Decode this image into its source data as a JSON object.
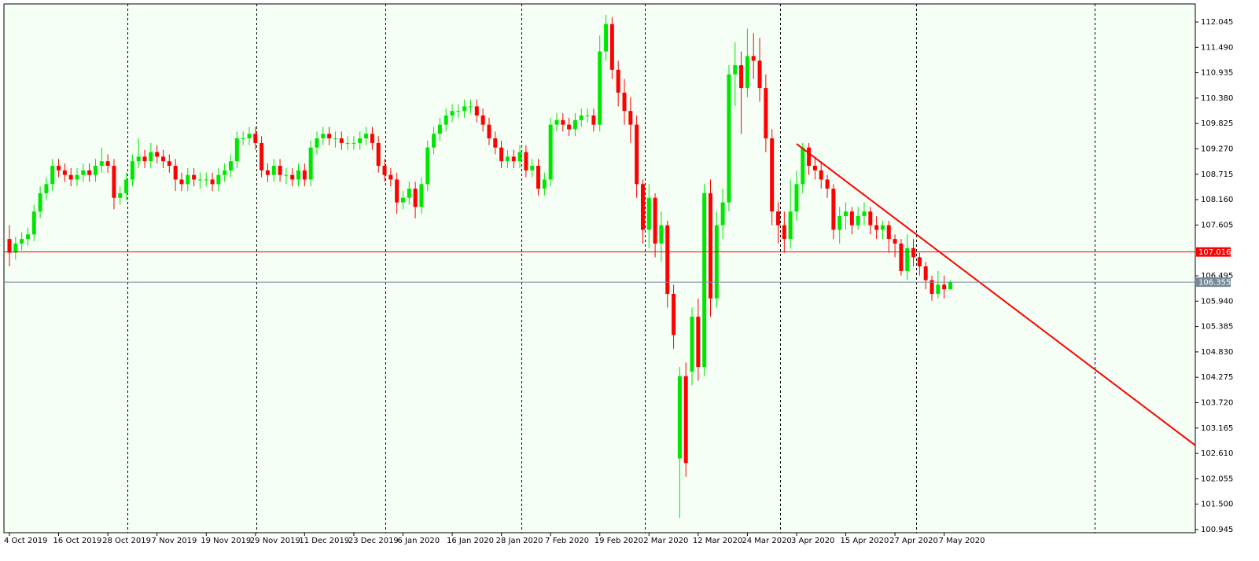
{
  "chart_data": {
    "type": "candlestick",
    "categories": [
      "4 Oct 2019",
      null,
      null,
      null,
      null,
      null,
      null,
      null,
      "16 Oct 2019",
      null,
      null,
      null,
      null,
      null,
      null,
      null,
      "28 Oct 2019",
      null,
      null,
      null,
      null,
      null,
      null,
      null,
      "7 Nov 2019",
      null,
      null,
      null,
      null,
      null,
      null,
      null,
      "19 Nov 2019",
      null,
      null,
      null,
      null,
      null,
      null,
      null,
      "29 Nov 2019",
      null,
      null,
      null,
      null,
      null,
      null,
      null,
      "11 Dec 2019",
      null,
      null,
      null,
      null,
      null,
      null,
      null,
      "23 Dec 2019",
      null,
      null,
      null,
      null,
      null,
      null,
      null,
      "6 Jan 2020",
      null,
      null,
      null,
      null,
      null,
      null,
      null,
      "16 Jan 2020",
      null,
      null,
      null,
      null,
      null,
      null,
      null,
      "28 Jan 2020",
      null,
      null,
      null,
      null,
      null,
      null,
      null,
      "7 Feb 2020",
      null,
      null,
      null,
      null,
      null,
      null,
      null,
      "19 Feb 2020",
      null,
      null,
      null,
      null,
      null,
      null,
      null,
      "2 Mar 2020",
      null,
      null,
      null,
      null,
      null,
      null,
      null,
      "12 Mar 2020",
      null,
      null,
      null,
      null,
      null,
      null,
      null,
      "24 Mar 2020",
      null,
      null,
      null,
      null,
      null,
      null,
      null,
      "3 Apr 2020",
      null,
      null,
      null,
      null,
      null,
      null,
      null,
      "15 Apr 2020",
      null,
      null,
      null,
      null,
      null,
      null,
      null,
      "27 Apr 2020",
      null,
      null,
      null,
      null,
      null,
      null,
      null,
      "7 May 2020",
      null
    ],
    "open": [
      107.3,
      107.0,
      107.2,
      107.3,
      107.4,
      107.9,
      108.3,
      108.5,
      108.9,
      108.8,
      108.7,
      108.6,
      108.7,
      108.8,
      108.7,
      108.9,
      109.0,
      108.9,
      108.2,
      108.3,
      108.6,
      109.0,
      109.1,
      109.0,
      109.2,
      109.1,
      109.0,
      108.9,
      108.6,
      108.5,
      108.7,
      108.6,
      108.6,
      108.6,
      108.5,
      108.7,
      108.8,
      109.0,
      109.5,
      109.5,
      109.6,
      109.4,
      108.8,
      108.7,
      108.9,
      108.7,
      108.7,
      108.6,
      108.8,
      108.6,
      109.3,
      109.5,
      109.6,
      109.5,
      109.5,
      109.4,
      109.4,
      109.4,
      109.5,
      109.6,
      109.4,
      108.9,
      108.7,
      108.6,
      108.1,
      108.2,
      108.4,
      108.0,
      108.5,
      109.3,
      109.6,
      109.8,
      110.0,
      110.1,
      110.1,
      110.2,
      110.2,
      110.0,
      109.8,
      109.5,
      109.3,
      109.0,
      109.1,
      109.0,
      109.2,
      108.8,
      108.9,
      108.4,
      108.6,
      109.8,
      109.9,
      109.8,
      109.7,
      109.9,
      110.0,
      110.0,
      109.8,
      111.4,
      112.0,
      111.0,
      110.5,
      110.1,
      109.8,
      108.5,
      107.5,
      108.2,
      107.2,
      107.6,
      106.1,
      102.5,
      104.3,
      104.4,
      105.6,
      104.5,
      108.3,
      106.0,
      107.6,
      108.1,
      110.9,
      111.1,
      110.6,
      111.3,
      111.2,
      110.6,
      109.5,
      107.9,
      107.6,
      107.3,
      107.9,
      108.5,
      109.3,
      108.9,
      108.8,
      108.6,
      108.4,
      107.5,
      107.8,
      107.9,
      107.6,
      107.8,
      107.9,
      107.6,
      107.5,
      107.6,
      107.3,
      107.2,
      106.6,
      107.1,
      106.9,
      106.7,
      106.4,
      106.1,
      106.3,
      106.2
    ],
    "high": [
      107.6,
      107.35,
      107.45,
      107.55,
      108.05,
      108.45,
      108.65,
      109.05,
      109.05,
      108.95,
      108.85,
      108.85,
      108.95,
      108.95,
      109.05,
      109.3,
      109.15,
      109.05,
      108.45,
      108.75,
      109.15,
      109.5,
      109.25,
      109.4,
      109.35,
      109.25,
      109.15,
      109.05,
      108.75,
      108.85,
      108.85,
      108.75,
      108.75,
      108.75,
      108.85,
      108.95,
      109.15,
      109.65,
      109.65,
      109.75,
      109.75,
      109.55,
      108.95,
      109.05,
      109.05,
      108.85,
      108.85,
      108.95,
      108.95,
      109.45,
      109.65,
      109.75,
      109.75,
      109.65,
      109.65,
      109.55,
      109.55,
      109.65,
      109.75,
      109.75,
      109.55,
      109.05,
      108.85,
      108.75,
      108.35,
      108.55,
      108.55,
      108.65,
      109.45,
      109.75,
      109.95,
      110.15,
      110.25,
      110.25,
      110.35,
      110.35,
      110.35,
      110.15,
      109.95,
      109.65,
      109.45,
      109.25,
      109.25,
      109.35,
      109.35,
      109.05,
      109.05,
      108.75,
      109.95,
      110.05,
      110.05,
      109.95,
      110.05,
      110.15,
      110.15,
      110.15,
      111.75,
      112.2,
      112.15,
      111.2,
      110.8,
      110.4,
      110.0,
      108.6,
      108.5,
      108.3,
      107.9,
      107.7,
      106.3,
      104.5,
      104.6,
      105.8,
      106.0,
      108.5,
      108.6,
      107.9,
      108.4,
      111.1,
      111.6,
      111.4,
      111.9,
      111.8,
      111.7,
      110.9,
      109.7,
      108.1,
      107.9,
      108.6,
      108.8,
      109.4,
      109.4,
      109.1,
      109.0,
      108.7,
      108.5,
      108.0,
      108.1,
      108.0,
      108.0,
      108.1,
      108.0,
      107.8,
      107.7,
      107.7,
      107.4,
      107.3,
      107.4,
      107.3,
      107.0,
      106.8,
      106.5,
      106.6,
      106.5,
      106.4
    ],
    "low": [
      106.7,
      106.85,
      107.05,
      107.15,
      107.25,
      107.75,
      108.15,
      108.35,
      108.65,
      108.55,
      108.45,
      108.45,
      108.55,
      108.55,
      108.55,
      108.75,
      108.75,
      107.95,
      108.05,
      108.15,
      108.45,
      108.85,
      108.85,
      108.85,
      108.95,
      108.85,
      108.75,
      108.35,
      108.35,
      108.35,
      108.45,
      108.4,
      108.45,
      108.35,
      108.35,
      108.55,
      108.65,
      108.85,
      109.35,
      109.35,
      109.25,
      108.65,
      108.55,
      108.55,
      108.55,
      108.5,
      108.45,
      108.45,
      108.45,
      108.45,
      109.15,
      109.35,
      109.35,
      109.3,
      109.25,
      109.25,
      109.25,
      109.25,
      109.35,
      109.25,
      108.75,
      108.55,
      108.45,
      107.85,
      107.95,
      108.05,
      107.75,
      107.85,
      108.35,
      109.15,
      109.45,
      109.65,
      109.85,
      109.95,
      109.95,
      110.05,
      109.85,
      109.65,
      109.35,
      109.15,
      108.85,
      108.85,
      108.85,
      108.85,
      108.65,
      108.65,
      108.25,
      108.25,
      108.45,
      109.65,
      109.65,
      109.55,
      109.55,
      109.75,
      109.85,
      109.65,
      109.65,
      111.2,
      110.8,
      110.2,
      109.8,
      109.4,
      108.2,
      107.2,
      107.1,
      106.9,
      106.8,
      105.8,
      104.9,
      101.2,
      102.1,
      104.1,
      104.2,
      104.3,
      105.6,
      105.8,
      107.3,
      107.9,
      110.2,
      109.6,
      110.4,
      110.8,
      110.3,
      109.2,
      107.6,
      107.2,
      107.0,
      107.1,
      107.7,
      108.3,
      108.7,
      108.6,
      108.4,
      108.2,
      107.3,
      107.2,
      107.5,
      107.4,
      107.5,
      107.6,
      107.4,
      107.3,
      107.3,
      107.0,
      106.9,
      106.5,
      106.4,
      106.7,
      106.5,
      106.2,
      105.95,
      106.0,
      106.0,
      106.2
    ],
    "close": [
      107.0,
      107.2,
      107.3,
      107.4,
      107.9,
      108.3,
      108.5,
      108.9,
      108.8,
      108.7,
      108.6,
      108.7,
      108.8,
      108.7,
      108.9,
      109.0,
      108.9,
      108.2,
      108.3,
      108.6,
      109.0,
      109.1,
      109.0,
      109.2,
      109.1,
      109.0,
      108.9,
      108.6,
      108.5,
      108.7,
      108.6,
      108.6,
      108.6,
      108.5,
      108.7,
      108.8,
      109.0,
      109.5,
      109.5,
      109.6,
      109.4,
      108.8,
      108.7,
      108.9,
      108.7,
      108.7,
      108.6,
      108.8,
      108.6,
      109.3,
      109.5,
      109.6,
      109.5,
      109.5,
      109.4,
      109.4,
      109.4,
      109.5,
      109.6,
      109.4,
      108.9,
      108.7,
      108.6,
      108.1,
      108.2,
      108.4,
      108.0,
      108.5,
      109.3,
      109.6,
      109.8,
      110.0,
      110.1,
      110.1,
      110.2,
      110.2,
      110.0,
      109.8,
      109.5,
      109.3,
      109.0,
      109.1,
      109.0,
      109.2,
      108.8,
      108.9,
      108.4,
      108.6,
      109.8,
      109.9,
      109.8,
      109.7,
      109.9,
      110.0,
      110.0,
      109.8,
      111.4,
      112.0,
      111.0,
      110.5,
      110.1,
      109.8,
      108.5,
      107.5,
      108.2,
      107.2,
      107.6,
      106.1,
      105.2,
      104.3,
      102.4,
      105.6,
      104.5,
      108.3,
      106.0,
      107.6,
      108.1,
      110.9,
      111.1,
      110.6,
      111.3,
      111.2,
      110.6,
      109.5,
      107.9,
      107.6,
      107.3,
      107.9,
      108.5,
      109.3,
      108.9,
      108.8,
      108.6,
      108.4,
      107.5,
      107.8,
      107.9,
      107.6,
      107.8,
      107.9,
      107.6,
      107.5,
      107.6,
      107.3,
      107.2,
      106.6,
      107.1,
      106.9,
      106.7,
      106.4,
      106.1,
      106.3,
      106.2,
      106.35
    ],
    "up_color": "#00e600",
    "down_color": "#ff0000",
    "ylim": [
      100.876,
      112.44
    ],
    "yticks": [
      112.045,
      {
        "value": 111.49,
        "label": "111.490"
      },
      110.935,
      {
        "value": 110.38,
        "label": "110.380"
      },
      109.825,
      {
        "value": 109.27,
        "label": "109.270"
      },
      108.715,
      {
        "value": 108.16,
        "label": "108.160"
      },
      107.605,
      106.495,
      {
        "value": 105.94,
        "label": "105.940"
      },
      105.385,
      {
        "value": 104.83,
        "label": "104.830"
      },
      104.275,
      {
        "value": 103.72,
        "label": "103.720"
      },
      103.165,
      {
        "value": 102.61,
        "label": "102.610"
      },
      102.055,
      {
        "value": 101.5,
        "label": "101.500"
      },
      100.945
    ],
    "hlines": [
      {
        "value": 107.016,
        "color": "#ff0000"
      },
      {
        "value": 106.355,
        "color": "#778899"
      }
    ],
    "trendline": {
      "x": [
        128,
        193
      ],
      "y": [
        109.38,
        102.77
      ],
      "color": "#ff0000"
    }
  }
}
